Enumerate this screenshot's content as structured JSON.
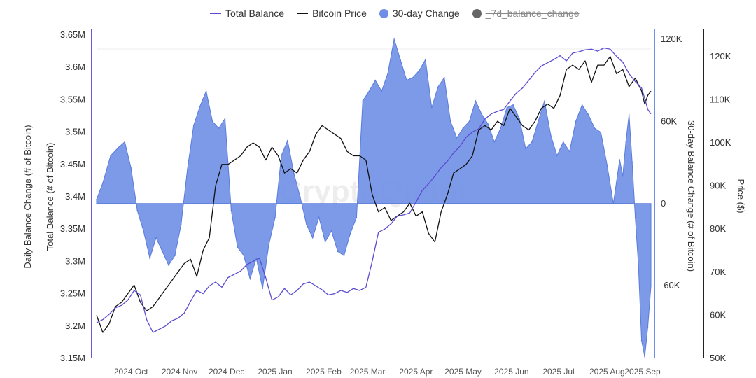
{
  "chart_data": {
    "type": "line",
    "title": "",
    "legend": [
      {
        "name": "Total Balance",
        "color": "#5a4bd1",
        "kind": "line"
      },
      {
        "name": "Bitcoin Price",
        "color": "#111111",
        "kind": "line"
      },
      {
        "name": "30-day Change",
        "color": "#6f8fe6",
        "kind": "dot"
      },
      {
        "name": "_7d_balance_change",
        "color": "#666666",
        "kind": "dot",
        "hidden": true
      }
    ],
    "watermark": "CryptoQuant",
    "left_axis_outer_label": "Daily Balance Change (# of Bitcoin)",
    "left_axis_label": "Total Balance (# of Bitcoin)",
    "left_axis_ticks": [
      "3.65M",
      "3.6M",
      "3.55M",
      "3.5M",
      "3.45M",
      "3.4M",
      "3.35M",
      "3.3M",
      "3.25M",
      "3.2M",
      "3.15M"
    ],
    "ylim_left": [
      3150000,
      3650000
    ],
    "right1_axis_label": "30-day Balance Change (# of Bitcoin)",
    "right1_axis_ticks": [
      "120K",
      "60K",
      "0",
      "-60K"
    ],
    "ylim_right1": [
      -113000,
      123000
    ],
    "right2_axis_label": "Price ($)",
    "right2_axis_ticks": [
      "120K",
      "110K",
      "100K",
      "90K",
      "80K",
      "70K",
      "60K",
      "50K"
    ],
    "ylim_right2": [
      50000,
      125000
    ],
    "x_ticks": [
      "2024 Oct",
      "2024 Nov",
      "2024 Dec",
      "2025 Jan",
      "2025 Feb",
      "2025 Mar",
      "2025 Apr",
      "2025 May",
      "2025 Jun",
      "2025 Jul",
      "2025 Aug",
      "2025 Sep"
    ],
    "x_range_days": [
      0,
      354
    ],
    "x_tick_days": [
      22,
      53,
      83,
      114,
      145,
      173,
      204,
      234,
      265,
      295,
      326,
      357
    ],
    "series": [
      {
        "name": "30-day Change",
        "type": "area",
        "x": [
          0,
          4,
          9,
          14,
          18,
          22,
          26,
          30,
          34,
          38,
          42,
          46,
          50,
          54,
          58,
          62,
          66,
          70,
          74,
          78,
          82,
          86,
          90,
          94,
          98,
          102,
          106,
          110,
          114,
          118,
          122,
          126,
          130,
          134,
          138,
          142,
          146,
          150,
          154,
          158,
          162,
          166,
          170,
          174,
          178,
          182,
          186,
          190,
          194,
          198,
          202,
          206,
          210,
          214,
          218,
          222,
          226,
          230,
          234,
          238,
          242,
          246,
          250,
          254,
          258,
          262,
          266,
          270,
          274,
          278,
          282,
          286,
          290,
          294,
          298,
          302,
          306,
          310,
          314,
          318,
          322,
          326,
          330,
          334,
          336,
          338,
          340,
          342,
          344,
          346,
          348,
          350,
          352,
          354
        ],
        "values": [
          3000,
          15000,
          35000,
          41000,
          45000,
          26000,
          -5000,
          -20000,
          -40000,
          -25000,
          -35000,
          -45000,
          -38000,
          -15000,
          25000,
          57000,
          71000,
          82000,
          60000,
          55000,
          62000,
          -5000,
          -32000,
          -38000,
          -55000,
          -40000,
          -62000,
          -30000,
          -10000,
          35000,
          46000,
          22000,
          5000,
          -15000,
          -25000,
          -10000,
          -28000,
          -20000,
          -35000,
          -38000,
          -22000,
          -10000,
          75000,
          82000,
          90000,
          82000,
          95000,
          120000,
          105000,
          90000,
          92000,
          97000,
          105000,
          70000,
          85000,
          92000,
          60000,
          48000,
          55000,
          60000,
          75000,
          65000,
          58000,
          45000,
          55000,
          70000,
          72000,
          62000,
          40000,
          45000,
          60000,
          75000,
          50000,
          35000,
          45000,
          38000,
          60000,
          72000,
          65000,
          55000,
          52000,
          28000,
          0,
          32000,
          20000,
          45000,
          65000,
          30000,
          -10000,
          -45000,
          -100000,
          -112000,
          -90000,
          -60000
        ]
      },
      {
        "name": "Total Balance",
        "type": "line",
        "axis": "left",
        "x": [
          0,
          4,
          8,
          12,
          16,
          20,
          24,
          28,
          32,
          36,
          40,
          44,
          48,
          52,
          56,
          60,
          64,
          68,
          72,
          76,
          80,
          84,
          88,
          92,
          96,
          100,
          104,
          108,
          112,
          116,
          120,
          124,
          128,
          132,
          136,
          140,
          144,
          148,
          152,
          156,
          160,
          164,
          168,
          172,
          176,
          180,
          184,
          188,
          192,
          196,
          200,
          204,
          208,
          212,
          216,
          220,
          224,
          228,
          232,
          236,
          240,
          244,
          248,
          252,
          256,
          260,
          264,
          268,
          272,
          276,
          280,
          284,
          288,
          292,
          296,
          300,
          304,
          308,
          312,
          316,
          320,
          324,
          328,
          332,
          336,
          340,
          344,
          348,
          350,
          352,
          354
        ],
        "values": [
          3205000,
          3210000,
          3218000,
          3228000,
          3232000,
          3240000,
          3255000,
          3248000,
          3210000,
          3190000,
          3195000,
          3200000,
          3208000,
          3212000,
          3220000,
          3238000,
          3255000,
          3250000,
          3262000,
          3268000,
          3260000,
          3275000,
          3280000,
          3285000,
          3295000,
          3300000,
          3305000,
          3275000,
          3240000,
          3245000,
          3258000,
          3248000,
          3255000,
          3265000,
          3268000,
          3262000,
          3256000,
          3248000,
          3250000,
          3255000,
          3252000,
          3258000,
          3255000,
          3260000,
          3300000,
          3345000,
          3350000,
          3358000,
          3370000,
          3372000,
          3375000,
          3392000,
          3410000,
          3420000,
          3432000,
          3445000,
          3455000,
          3468000,
          3478000,
          3492000,
          3500000,
          3505000,
          3520000,
          3528000,
          3532000,
          3535000,
          3548000,
          3560000,
          3568000,
          3580000,
          3592000,
          3602000,
          3607000,
          3612000,
          3618000,
          3610000,
          3622000,
          3624000,
          3627000,
          3628000,
          3625000,
          3630000,
          3628000,
          3617000,
          3608000,
          3590000,
          3578000,
          3568000,
          3552000,
          3535000,
          3528000
        ]
      },
      {
        "name": "Bitcoin Price",
        "type": "line",
        "axis": "right2",
        "x": [
          0,
          4,
          8,
          12,
          16,
          20,
          24,
          28,
          32,
          36,
          40,
          44,
          48,
          52,
          56,
          60,
          64,
          68,
          72,
          76,
          80,
          84,
          88,
          92,
          96,
          100,
          104,
          108,
          112,
          116,
          120,
          124,
          128,
          132,
          136,
          140,
          144,
          148,
          152,
          156,
          160,
          164,
          168,
          172,
          176,
          180,
          184,
          188,
          192,
          196,
          200,
          204,
          208,
          212,
          216,
          220,
          224,
          228,
          232,
          236,
          240,
          244,
          248,
          252,
          256,
          260,
          264,
          268,
          272,
          276,
          280,
          284,
          288,
          292,
          296,
          300,
          304,
          308,
          312,
          316,
          320,
          324,
          328,
          332,
          336,
          340,
          344,
          348,
          350,
          352,
          354
        ],
        "values": [
          60000,
          56000,
          58000,
          62000,
          63000,
          65000,
          67000,
          63000,
          61000,
          62000,
          64000,
          66000,
          68000,
          70000,
          72000,
          73000,
          69000,
          75000,
          78000,
          90000,
          95000,
          95000,
          96000,
          97000,
          99000,
          100000,
          99000,
          96000,
          99000,
          97000,
          93000,
          94000,
          93000,
          96000,
          98000,
          102000,
          104000,
          103000,
          102000,
          101000,
          98000,
          97000,
          97000,
          96000,
          88000,
          84000,
          85000,
          82000,
          83000,
          84000,
          86000,
          83000,
          84000,
          79000,
          77000,
          84000,
          88000,
          93000,
          94000,
          95000,
          97000,
          103000,
          104000,
          103000,
          105000,
          104000,
          108000,
          106000,
          104000,
          103000,
          105000,
          108000,
          109000,
          108000,
          111000,
          117000,
          118000,
          117000,
          119000,
          114000,
          118000,
          118000,
          120000,
          116000,
          117000,
          113000,
          115000,
          112000,
          109000,
          111000,
          112000
        ]
      }
    ]
  }
}
